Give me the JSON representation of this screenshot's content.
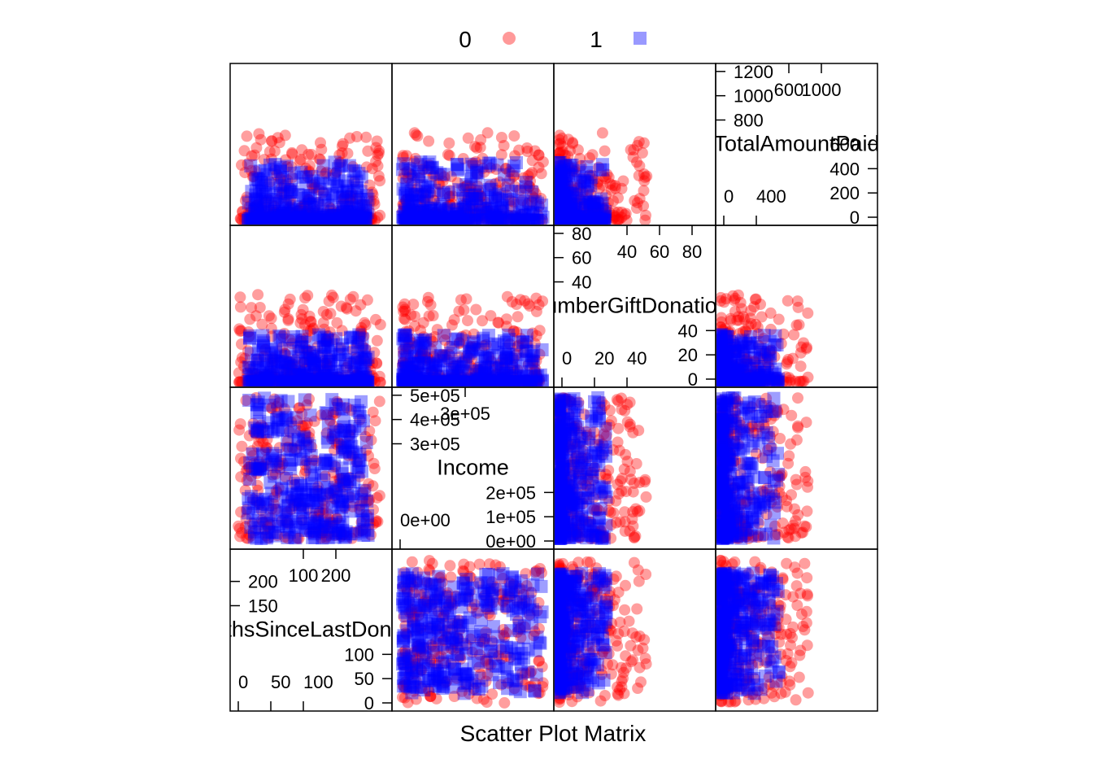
{
  "chart_data": {
    "type": "scatter",
    "subtype": "scatter-plot-matrix",
    "xlabel": "Scatter Plot Matrix",
    "legend": {
      "placement": "top",
      "entries": [
        {
          "label": "0",
          "color": "#ff0000",
          "marker": "circle"
        },
        {
          "label": "1",
          "color": "#0000ff",
          "marker": "square"
        }
      ]
    },
    "variables": [
      {
        "name": "MonthsSinceLastDonation",
        "range": [
          0,
          240
        ],
        "ticks_a": [
          "150",
          "200"
        ],
        "ticks_b": [
          "0",
          "50",
          "100"
        ],
        "ticks_c": [
          "100",
          "200"
        ],
        "ticks_d": [
          "0",
          "50",
          "100"
        ]
      },
      {
        "name": "Income",
        "range": [
          -20000,
          520000
        ],
        "ticks_a": [
          "3e+05",
          "4e+05",
          "5e+05"
        ],
        "ticks_b": [
          "0e+00"
        ],
        "ticks_c": [
          "3e+05"
        ],
        "ticks_d": [
          "0e+00",
          "1e+05",
          "2e+05"
        ]
      },
      {
        "name": "NumberGiftDonations",
        "range": [
          0,
          95
        ],
        "ticks_a": [
          "40",
          "60",
          "80"
        ],
        "ticks_b": [
          "0",
          "20",
          "40"
        ],
        "ticks_c": [
          "40",
          "60",
          "80"
        ],
        "ticks_d": [
          "0",
          "20",
          "40"
        ]
      },
      {
        "name": "TotalAmountPaid",
        "range": [
          0,
          1300
        ],
        "ticks_a": [
          "800",
          "1000",
          "1200"
        ],
        "ticks_b": [
          "0",
          "400"
        ],
        "ticks_c": [
          "600",
          "1000"
        ],
        "ticks_d": [
          "0",
          "200",
          "400",
          "600"
        ]
      }
    ],
    "grid": false
  }
}
